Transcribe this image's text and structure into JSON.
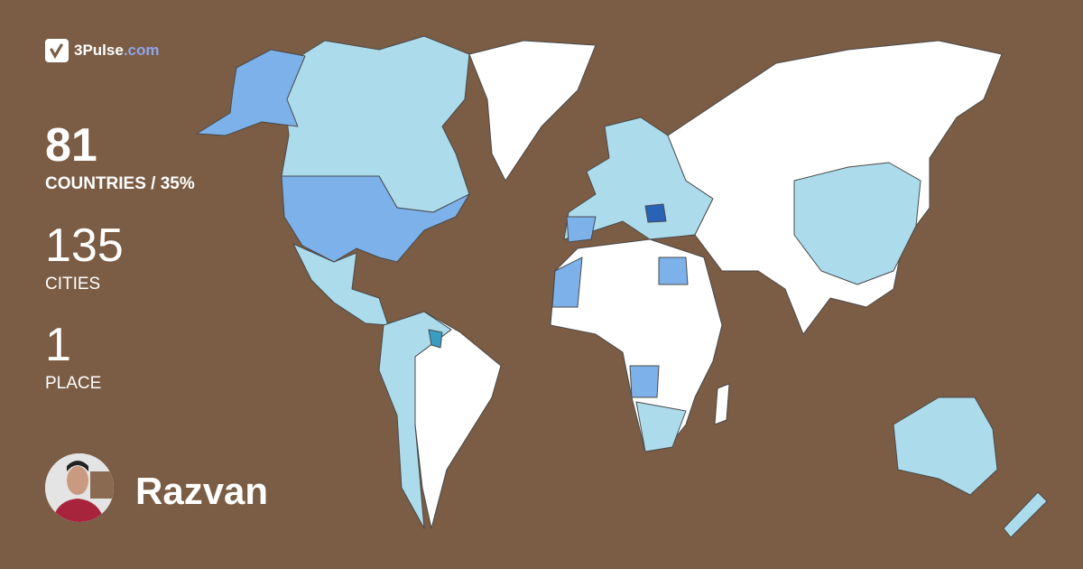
{
  "brand": {
    "name": "3Pulse",
    "domain": ".com",
    "accent": "#8fa6ea"
  },
  "stats": [
    {
      "value": "81",
      "label": "COUNTRIES / 35%"
    },
    {
      "value": "135",
      "label": "CITIES"
    },
    {
      "value": "1",
      "label": "PLACE"
    }
  ],
  "user": {
    "name": "Razvan"
  },
  "map_colors": {
    "background": "#7b5c44",
    "unvisited": "#ffffff",
    "visited_light": "#acdcec",
    "visited_medium": "#7db1ea",
    "visited_dark": "#2a62b8",
    "visited_teal": "#3a9cc0"
  }
}
